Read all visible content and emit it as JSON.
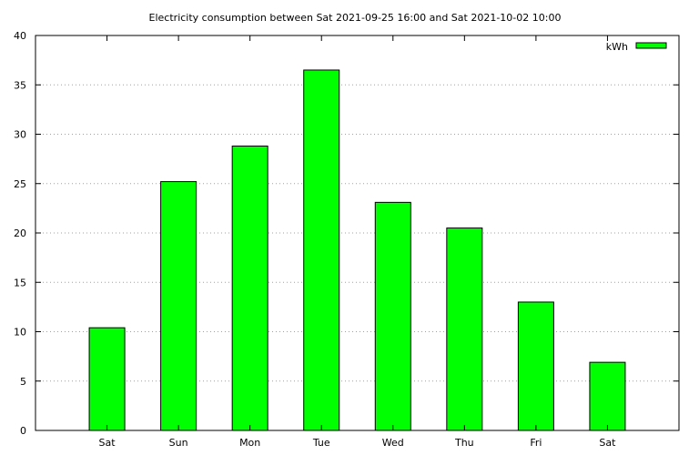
{
  "chart_data": {
    "type": "bar",
    "title": "Electricity consumption between Sat 2021-09-25 16:00 and Sat 2021-10-02 10:00",
    "xlabel": "",
    "ylabel": "",
    "categories": [
      "Sat",
      "Sun",
      "Mon",
      "Tue",
      "Wed",
      "Thu",
      "Fri",
      "Sat"
    ],
    "series": [
      {
        "name": "kWh",
        "values": [
          10.4,
          25.2,
          28.8,
          36.5,
          23.1,
          20.5,
          13.0,
          6.9
        ]
      }
    ],
    "ylim": [
      0,
      40
    ],
    "yticks": [
      0,
      5,
      10,
      15,
      20,
      25,
      30,
      35,
      40
    ],
    "grid": true,
    "legend": "top-right",
    "colors": {
      "bar": "#00ff00",
      "outline": "#000000",
      "grid": "#a0a0a0"
    }
  }
}
